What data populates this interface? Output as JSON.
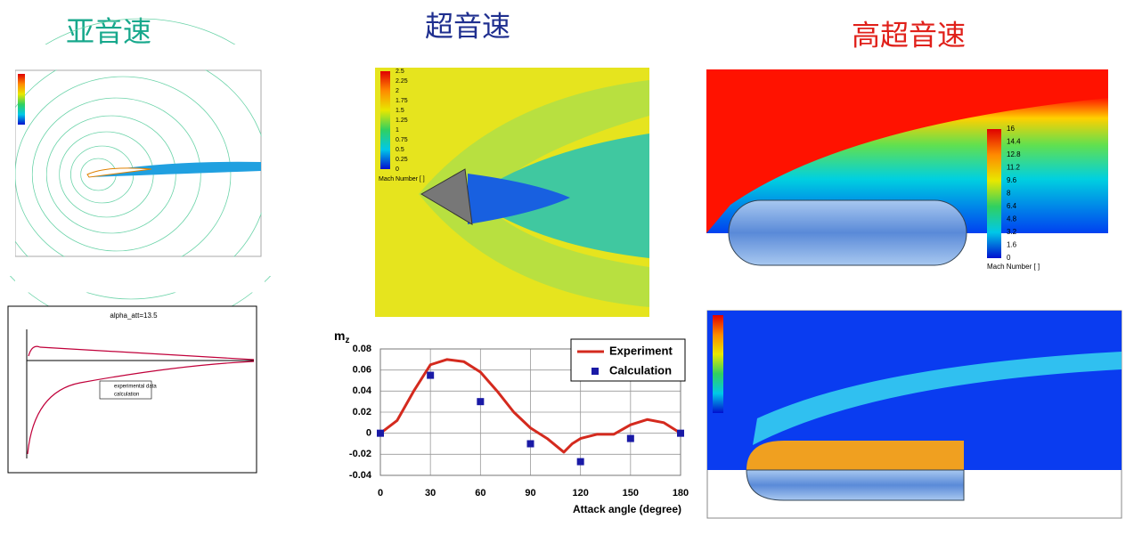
{
  "headings": {
    "subsonic": "亚音速",
    "supersonic": "超音速",
    "hypersonic": "高超音速"
  },
  "subsonic_plot": {
    "title": "alpha_att=13.5",
    "legend": [
      "experimental data",
      "calculation"
    ]
  },
  "supersonic_image": {
    "colorbar_labels": [
      "2.5",
      "2.25",
      "2",
      "1.75",
      "1.5",
      "1.25",
      "1",
      "0.75",
      "0.5",
      "0.25",
      "0"
    ],
    "colorbar_title": "Mach Number [ ]"
  },
  "hypersonic_image": {
    "colorbar_labels": [
      "16",
      "14.4",
      "12.8",
      "11.2",
      "9.6",
      "8",
      "6.4",
      "4.8",
      "3.2",
      "1.6",
      "0"
    ],
    "colorbar_title": "Mach Number [ ]"
  },
  "chart_data": {
    "type": "line",
    "ylabel": "m",
    "ylabel_subscript": "z",
    "xlabel": "Attack angle (degree)",
    "series": [
      {
        "name": "Experiment",
        "color": "#d42a1e",
        "marker": "line",
        "x": [
          0,
          10,
          20,
          30,
          40,
          50,
          60,
          70,
          80,
          90,
          100,
          110,
          115,
          120,
          130,
          140,
          150,
          160,
          170,
          180
        ],
        "values": [
          0,
          0.012,
          0.04,
          0.065,
          0.07,
          0.068,
          0.058,
          0.04,
          0.02,
          0.005,
          -0.005,
          -0.018,
          -0.01,
          -0.005,
          -0.001,
          -0.001,
          0.008,
          0.013,
          0.01,
          0
        ]
      },
      {
        "name": "Calculation",
        "color": "#1a1aa6",
        "marker": "square",
        "x": [
          0,
          30,
          60,
          90,
          120,
          150,
          180
        ],
        "values": [
          0,
          0.055,
          0.03,
          -0.01,
          -0.027,
          -0.005,
          0
        ]
      }
    ],
    "xlim": [
      0,
      180
    ],
    "xticks": [
      0,
      30,
      60,
      90,
      120,
      150,
      180
    ],
    "ylim": [
      -0.04,
      0.08
    ],
    "yticks": [
      0.08,
      0.06,
      0.04,
      0.02,
      0,
      -0.02,
      -0.04
    ],
    "grid": true,
    "legend": "upper-right"
  }
}
